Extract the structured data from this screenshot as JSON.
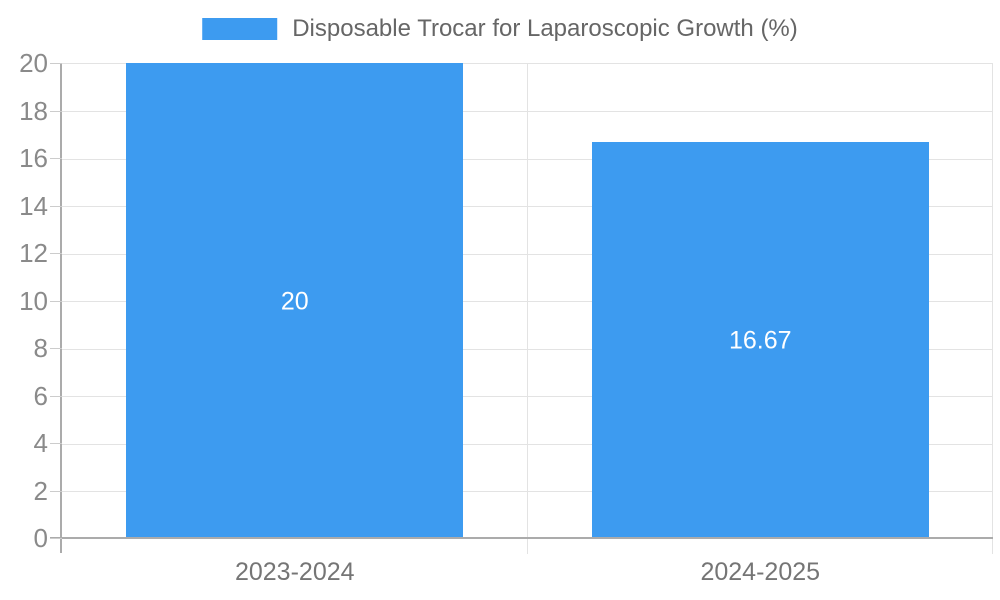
{
  "colors": {
    "background": "#ffffff",
    "bar": "#3d9bf0",
    "grid": "#e3e3e3",
    "axis": "#ababab",
    "tick": "#cccccc",
    "y_label": "#8a8a8a",
    "x_label": "#757575",
    "legend_text": "#666666",
    "bar_label": "#ffffff"
  },
  "chart_data": {
    "type": "bar",
    "title": "",
    "legend": [
      "Disposable Trocar for Laparoscopic Growth (%)"
    ],
    "legend_position": "top",
    "categories": [
      "2023-2024",
      "2024-2025"
    ],
    "series": [
      {
        "name": "Disposable Trocar for Laparoscopic Growth (%)",
        "values": [
          20,
          16.67
        ],
        "value_labels": [
          "20",
          "16.67"
        ],
        "color": "#3d9bf0"
      }
    ],
    "xlabel": "",
    "ylabel": "",
    "ylim": [
      0,
      20
    ],
    "yticks": [
      0,
      2,
      4,
      6,
      8,
      10,
      12,
      14,
      16,
      18,
      20
    ],
    "grid": true,
    "value_labels_inside_bars": true
  }
}
